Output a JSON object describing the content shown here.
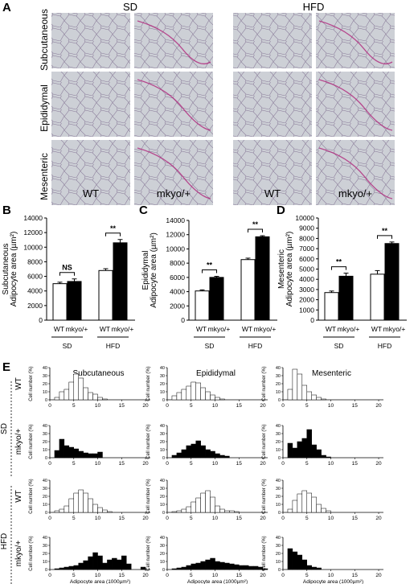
{
  "panels": {
    "A": "A",
    "B": "B",
    "C": "C",
    "D": "D",
    "E": "E"
  },
  "histology": {
    "diets": [
      "SD",
      "HFD"
    ],
    "tissues": [
      "Subcutaneous",
      "Epididymal",
      "Mesenteric"
    ],
    "genotypes": [
      "WT",
      "mkyo/+",
      "WT",
      "mkyo/+"
    ],
    "colors": {
      "tissue_bg": "#cdd0d6",
      "tissue_line": "#8d7f9c",
      "stain": "#b0277c"
    }
  },
  "chart_data": [
    {
      "id": "B",
      "type": "bar",
      "ylabel": [
        "Subcutaneous",
        "Adipocyte area (µm²)"
      ],
      "ylim": [
        0,
        14000
      ],
      "yticks": [
        "0",
        "2000",
        "4000",
        "6000",
        "8000",
        "10000",
        "12000",
        "14000"
      ],
      "groups": [
        "SD",
        "HFD"
      ],
      "bar_labels": [
        "WT",
        "mkyo/+"
      ],
      "series": [
        {
          "name": "WT",
          "fill": "#ffffff",
          "values": [
            5000,
            6800
          ],
          "errors": [
            200,
            250
          ]
        },
        {
          "name": "mkyo/+",
          "fill": "#000000",
          "values": [
            5300,
            10600
          ],
          "errors": [
            350,
            450
          ]
        }
      ],
      "significance": [
        "NS",
        "**"
      ]
    },
    {
      "id": "C",
      "type": "bar",
      "ylabel": [
        "Epididymal",
        "Adipocyte area (µm²)"
      ],
      "ylim": [
        0,
        14000
      ],
      "yticks": [
        "0",
        "2000",
        "4000",
        "6000",
        "8000",
        "10000",
        "12000",
        "14000"
      ],
      "groups": [
        "SD",
        "HFD"
      ],
      "bar_labels": [
        "WT",
        "mkyo/+"
      ],
      "series": [
        {
          "name": "WT",
          "fill": "#ffffff",
          "values": [
            4100,
            8500
          ],
          "errors": [
            150,
            200
          ]
        },
        {
          "name": "mkyo/+",
          "fill": "#000000",
          "values": [
            6000,
            11700
          ],
          "errors": [
            150,
            150
          ]
        }
      ],
      "significance": [
        "**",
        "**"
      ]
    },
    {
      "id": "D",
      "type": "bar",
      "ylabel": [
        "Mesenteric",
        "Adipocyte area (µm²)"
      ],
      "ylim": [
        0,
        10000
      ],
      "yticks": [
        "0",
        "1000",
        "2000",
        "3000",
        "4000",
        "5000",
        "6000",
        "7000",
        "8000",
        "9000",
        "10000"
      ],
      "groups": [
        "SD",
        "HFD"
      ],
      "bar_labels": [
        "WT",
        "mkyo/+"
      ],
      "series": [
        {
          "name": "WT",
          "fill": "#ffffff",
          "values": [
            2700,
            4500
          ],
          "errors": [
            150,
            350
          ]
        },
        {
          "name": "mkyo/+",
          "fill": "#000000",
          "values": [
            4300,
            7500
          ],
          "errors": [
            300,
            150
          ]
        }
      ],
      "significance": [
        "**",
        "**"
      ]
    },
    {
      "id": "E",
      "type": "bar",
      "subtype": "histogram-grid",
      "columns": [
        "Subcutaneous",
        "Epididymal",
        "Mesenteric"
      ],
      "diets": [
        "SD",
        "HFD"
      ],
      "rows": [
        {
          "diet": "SD",
          "genotype": "WT",
          "fill": "#ffffff"
        },
        {
          "diet": "SD",
          "genotype": "mkyo/+",
          "fill": "#000000"
        },
        {
          "diet": "HFD",
          "genotype": "WT",
          "fill": "#ffffff"
        },
        {
          "diet": "HFD",
          "genotype": "mkyo/+",
          "fill": "#000000"
        }
      ],
      "ylabel": "Cell number (%)",
      "xlabel": "Adipocyte area (1000µm²)",
      "xlim": [
        0,
        21
      ],
      "ylim": [
        0,
        40
      ],
      "xticks": [
        "0",
        "5",
        "10",
        "15",
        "20"
      ],
      "yticks": [
        "0",
        "10",
        "20",
        "30",
        "40"
      ],
      "histograms": [
        [
          [
            0,
            3,
            10,
            13,
            22,
            32,
            27,
            15,
            9,
            7,
            3,
            1,
            0,
            0,
            0,
            0,
            0,
            0,
            0,
            0,
            0
          ],
          [
            0,
            5,
            9,
            13,
            17,
            22,
            21,
            15,
            10,
            6,
            3,
            1,
            0,
            0,
            0,
            0,
            0,
            0,
            0,
            0,
            0
          ],
          [
            0,
            13,
            38,
            32,
            18,
            10,
            6,
            3,
            1,
            0,
            0,
            0,
            0,
            0,
            0,
            0,
            0,
            0,
            0,
            0,
            0
          ]
        ],
        [
          [
            0,
            9,
            23,
            15,
            13,
            11,
            8,
            6,
            5,
            5,
            7,
            0,
            0,
            0,
            0,
            0,
            0,
            0,
            0,
            0,
            0
          ],
          [
            0,
            3,
            6,
            10,
            15,
            17,
            21,
            15,
            10,
            8,
            5,
            3,
            2,
            0,
            0,
            0,
            0,
            0,
            0,
            0,
            0
          ],
          [
            0,
            18,
            12,
            20,
            24,
            35,
            16,
            10,
            3,
            1,
            0,
            0,
            0,
            0,
            0,
            0,
            0,
            0,
            0,
            0,
            0
          ]
        ],
        [
          [
            0,
            2,
            4,
            8,
            17,
            24,
            28,
            24,
            17,
            10,
            6,
            3,
            1,
            0,
            0,
            0,
            0,
            0,
            0,
            0,
            0
          ],
          [
            0,
            1,
            2,
            4,
            7,
            13,
            18,
            24,
            27,
            19,
            8,
            4,
            2,
            2,
            1,
            0,
            0,
            0,
            0,
            0,
            0
          ],
          [
            0,
            4,
            15,
            23,
            27,
            24,
            19,
            10,
            5,
            2,
            0,
            0,
            0,
            0,
            0,
            0,
            0,
            0,
            0,
            0,
            0
          ]
        ],
        [
          [
            0,
            1,
            2,
            3,
            4,
            5,
            8,
            11,
            16,
            21,
            17,
            8,
            12,
            14,
            12,
            17,
            7,
            0,
            0,
            3,
            0
          ],
          [
            0,
            1,
            2,
            3,
            5,
            7,
            8,
            10,
            12,
            14,
            10,
            9,
            8,
            7,
            6,
            5,
            5,
            4,
            4,
            3,
            1
          ],
          [
            0,
            26,
            22,
            18,
            12,
            5,
            3,
            2,
            0,
            0,
            0,
            0,
            0,
            0,
            0,
            0,
            0,
            0,
            0,
            0,
            0
          ]
        ]
      ]
    }
  ]
}
